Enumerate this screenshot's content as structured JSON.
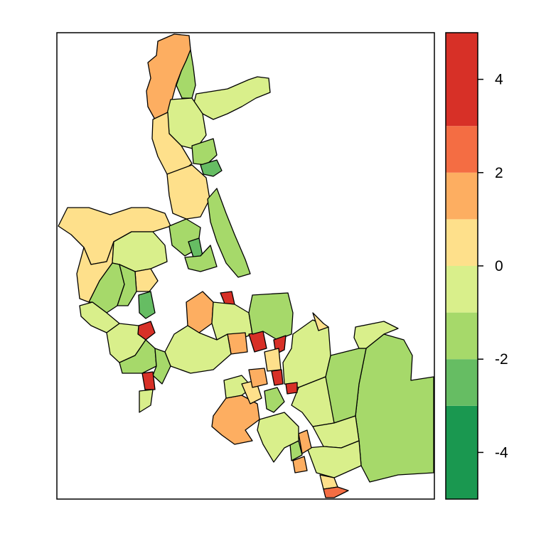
{
  "map": {
    "type": "choropleth",
    "frame": "box",
    "background": "#ffffff",
    "border_color": "#000000"
  },
  "legend": {
    "position": "right",
    "range": [
      -5,
      5
    ],
    "breaks": [
      -5,
      -4,
      -3,
      -2,
      -1,
      0,
      1,
      2,
      3,
      4,
      5
    ],
    "colors": [
      "#1a9850",
      "#66bd63",
      "#a6d96a",
      "#d9ef8b",
      "#fee08b",
      "#fdae61",
      "#f46d43",
      "#d73027"
    ],
    "classes": [
      {
        "min": -5,
        "max": -3,
        "color": "#1a9850"
      },
      {
        "min": -3,
        "max": -2,
        "color": "#66bd63"
      },
      {
        "min": -2,
        "max": -1,
        "color": "#a6d96a"
      },
      {
        "min": -1,
        "max": 0,
        "color": "#d9ef8b"
      },
      {
        "min": 0,
        "max": 1,
        "color": "#fee08b"
      },
      {
        "min": 1,
        "max": 2,
        "color": "#fdae61"
      },
      {
        "min": 2,
        "max": 3,
        "color": "#f46d43"
      },
      {
        "min": 3,
        "max": 5,
        "color": "#d73027"
      }
    ],
    "ticks": [
      {
        "value": 4,
        "label": "4"
      },
      {
        "value": 2,
        "label": "2"
      },
      {
        "value": 0,
        "label": "0"
      },
      {
        "value": -2,
        "label": "-2"
      },
      {
        "value": -4,
        "label": "-4"
      }
    ]
  }
}
